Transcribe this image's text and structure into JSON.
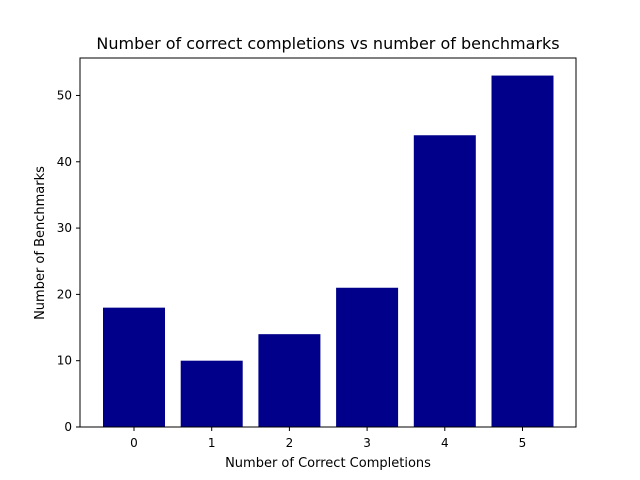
{
  "chart_data": {
    "type": "bar",
    "title": "Number of correct completions vs number of benchmarks",
    "xlabel": "Number of Correct Completions",
    "ylabel": "Number of Benchmarks",
    "categories": [
      "0",
      "1",
      "2",
      "3",
      "4",
      "5"
    ],
    "values": [
      18,
      10,
      14,
      21,
      44,
      53
    ],
    "ylim": [
      0,
      55.65
    ],
    "yticks": [
      "0",
      "10",
      "20",
      "30",
      "40",
      "50"
    ],
    "bar_color": "#00008b",
    "grid": false,
    "legend": "none"
  }
}
